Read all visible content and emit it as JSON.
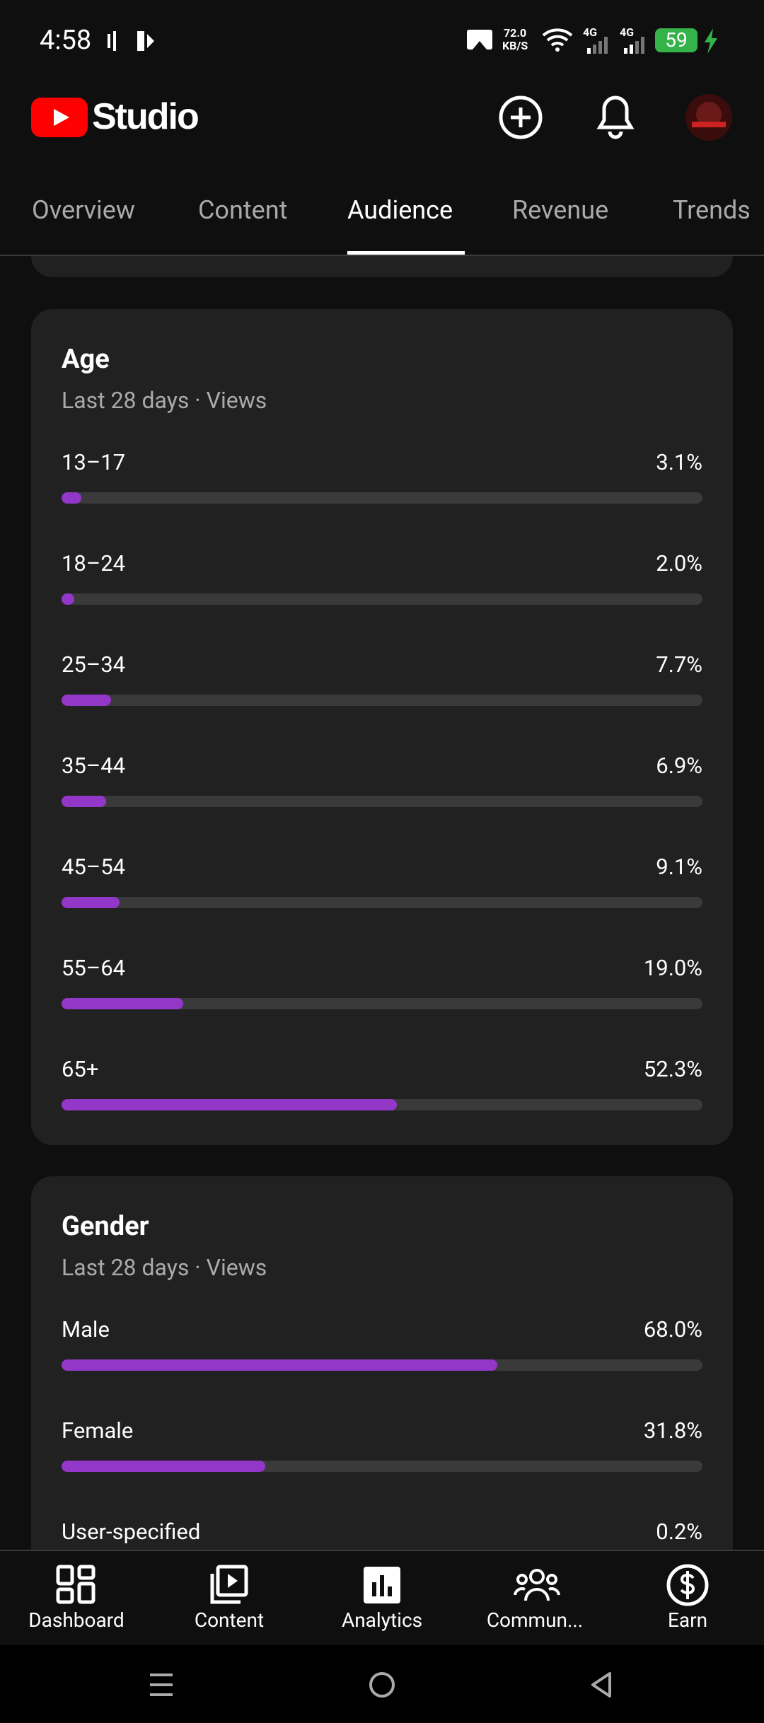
{
  "status_bar": {
    "time": "4:58",
    "speed": "72.0",
    "speed_unit": "KB/S",
    "network_1": "4G",
    "network_2": "4G",
    "battery": "59"
  },
  "header": {
    "title": "Studio"
  },
  "tabs": [
    "Overview",
    "Content",
    "Audience",
    "Revenue",
    "Trends"
  ],
  "age": {
    "title": "Age",
    "subtitle": "Last 28 days · Views",
    "xlim": [
      0,
      100
    ],
    "items": [
      {
        "label": "13–17",
        "value": 3.1,
        "value_label": "3.1%"
      },
      {
        "label": "18–24",
        "value": 2.0,
        "value_label": "2.0%"
      },
      {
        "label": "25–34",
        "value": 7.7,
        "value_label": "7.7%"
      },
      {
        "label": "35–44",
        "value": 6.9,
        "value_label": "6.9%"
      },
      {
        "label": "45–54",
        "value": 9.1,
        "value_label": "9.1%"
      },
      {
        "label": "55–64",
        "value": 19.0,
        "value_label": "19.0%"
      },
      {
        "label": "65+",
        "value": 52.3,
        "value_label": "52.3%"
      }
    ]
  },
  "gender": {
    "title": "Gender",
    "subtitle": "Last 28 days · Views",
    "xlim": [
      0,
      100
    ],
    "items": [
      {
        "label": "Male",
        "value": 68.0,
        "value_label": "68.0%"
      },
      {
        "label": "Female",
        "value": 31.8,
        "value_label": "31.8%"
      },
      {
        "label": "User-specified",
        "value": 0.2,
        "value_label": "0.2%"
      }
    ]
  },
  "bottom_nav": [
    "Dashboard",
    "Content",
    "Analytics",
    "Commun...",
    "Earn"
  ]
}
